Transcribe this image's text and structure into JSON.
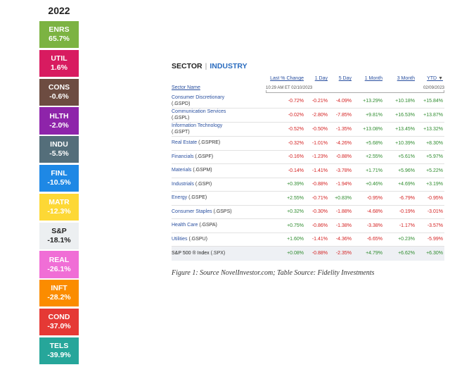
{
  "year": "2022",
  "tiles": [
    {
      "code": "ENRS",
      "value": "65.7%",
      "color": "#7cb342"
    },
    {
      "code": "UTIL",
      "value": "1.6%",
      "color": "#d81b60"
    },
    {
      "code": "CONS",
      "value": "-0.6%",
      "color": "#6d4c41"
    },
    {
      "code": "HLTH",
      "value": "-2.0%",
      "color": "#8e24aa"
    },
    {
      "code": "INDU",
      "value": "-5.5%",
      "color": "#546e7a"
    },
    {
      "code": "FINL",
      "value": "-10.5%",
      "color": "#1e88e5"
    },
    {
      "code": "MATR",
      "value": "-12.3%",
      "color": "#fdd835"
    },
    {
      "code": "S&P",
      "value": "-18.1%",
      "color": "#eceff1"
    },
    {
      "code": "REAL",
      "value": "-26.1%",
      "color": "#f06ed6"
    },
    {
      "code": "INFT",
      "value": "-28.2%",
      "color": "#fb8c00"
    },
    {
      "code": "COND",
      "value": "-37.0%",
      "color": "#e53935"
    },
    {
      "code": "TELS",
      "value": "-39.9%",
      "color": "#26a69a"
    }
  ],
  "table": {
    "tab_sector": "SECTOR",
    "tab_separator": "|",
    "tab_industry": "INDUSTRY",
    "headers": {
      "last": "Last % Change",
      "d1": "1 Day",
      "d5": "5 Day",
      "m1": "1 Month",
      "m3": "3 Month",
      "ytd": "YTD",
      "ytd_arrow": "▼"
    },
    "sector_name_header": "Sector Name",
    "last_timestamp": "10:29 AM ET 02/10/2023",
    "period_date": "02/09/2023",
    "rows": [
      {
        "name": "Consumer Discretionary",
        "sym": "(.GSPD)",
        "last": "-0.72%",
        "d1": "-0.21%",
        "d5": "-4.09%",
        "m1": "+13.29%",
        "m3": "+10.18%",
        "ytd": "+15.84%"
      },
      {
        "name": "Communication Services",
        "sym": "(.GSPL)",
        "last": "-0.02%",
        "d1": "-2.80%",
        "d5": "-7.85%",
        "m1": "+9.81%",
        "m3": "+16.53%",
        "ytd": "+13.87%"
      },
      {
        "name": "Information Technology",
        "sym": "(.GSPT)",
        "last": "-0.52%",
        "d1": "-0.50%",
        "d5": "-1.35%",
        "m1": "+13.08%",
        "m3": "+13.45%",
        "ytd": "+13.32%"
      },
      {
        "name": "Real Estate",
        "sym": "(.GSPRE)",
        "last": "-0.32%",
        "d1": "-1.01%",
        "d5": "-4.26%",
        "m1": "+5.68%",
        "m3": "+10.39%",
        "ytd": "+8.30%"
      },
      {
        "name": "Financials",
        "sym": "(.GSPF)",
        "last": "-0.16%",
        "d1": "-1.23%",
        "d5": "-0.88%",
        "m1": "+2.55%",
        "m3": "+5.61%",
        "ytd": "+5.97%"
      },
      {
        "name": "Materials",
        "sym": "(.GSPM)",
        "last": "-0.14%",
        "d1": "-1.41%",
        "d5": "-3.78%",
        "m1": "+1.71%",
        "m3": "+5.96%",
        "ytd": "+5.22%"
      },
      {
        "name": "Industrials",
        "sym": "(.GSPI)",
        "last": "+0.39%",
        "d1": "-0.88%",
        "d5": "-1.94%",
        "m1": "+0.46%",
        "m3": "+4.69%",
        "ytd": "+3.19%"
      },
      {
        "name": "Energy",
        "sym": "(.GSPE)",
        "last": "+2.55%",
        "d1": "-0.71%",
        "d5": "+0.83%",
        "m1": "-0.95%",
        "m3": "-6.79%",
        "ytd": "-0.95%"
      },
      {
        "name": "Consumer Staples",
        "sym": "(.GSPS)",
        "last": "+0.32%",
        "d1": "-0.30%",
        "d5": "-1.88%",
        "m1": "-4.68%",
        "m3": "-0.19%",
        "ytd": "-3.01%"
      },
      {
        "name": "Health Care",
        "sym": "(.GSPA)",
        "last": "+0.75%",
        "d1": "-0.86%",
        "d5": "-1.38%",
        "m1": "-3.38%",
        "m3": "-1.17%",
        "ytd": "-3.57%"
      },
      {
        "name": "Utilities",
        "sym": "(.GSPU)",
        "last": "+1.60%",
        "d1": "-1.41%",
        "d5": "-4.36%",
        "m1": "-6.65%",
        "m3": "+0.23%",
        "ytd": "-5.99%"
      }
    ],
    "total": {
      "name": "S&P 500 ® Index",
      "sym": "(.SPX)",
      "last": "+0.08%",
      "d1": "-0.88%",
      "d5": "-2.35%",
      "m1": "+4.79%",
      "m3": "+6.62%",
      "ytd": "+6.30%"
    }
  },
  "caption": "Figure 1: Source NovelInvestor.com; Table Source: Fidelity Investments"
}
